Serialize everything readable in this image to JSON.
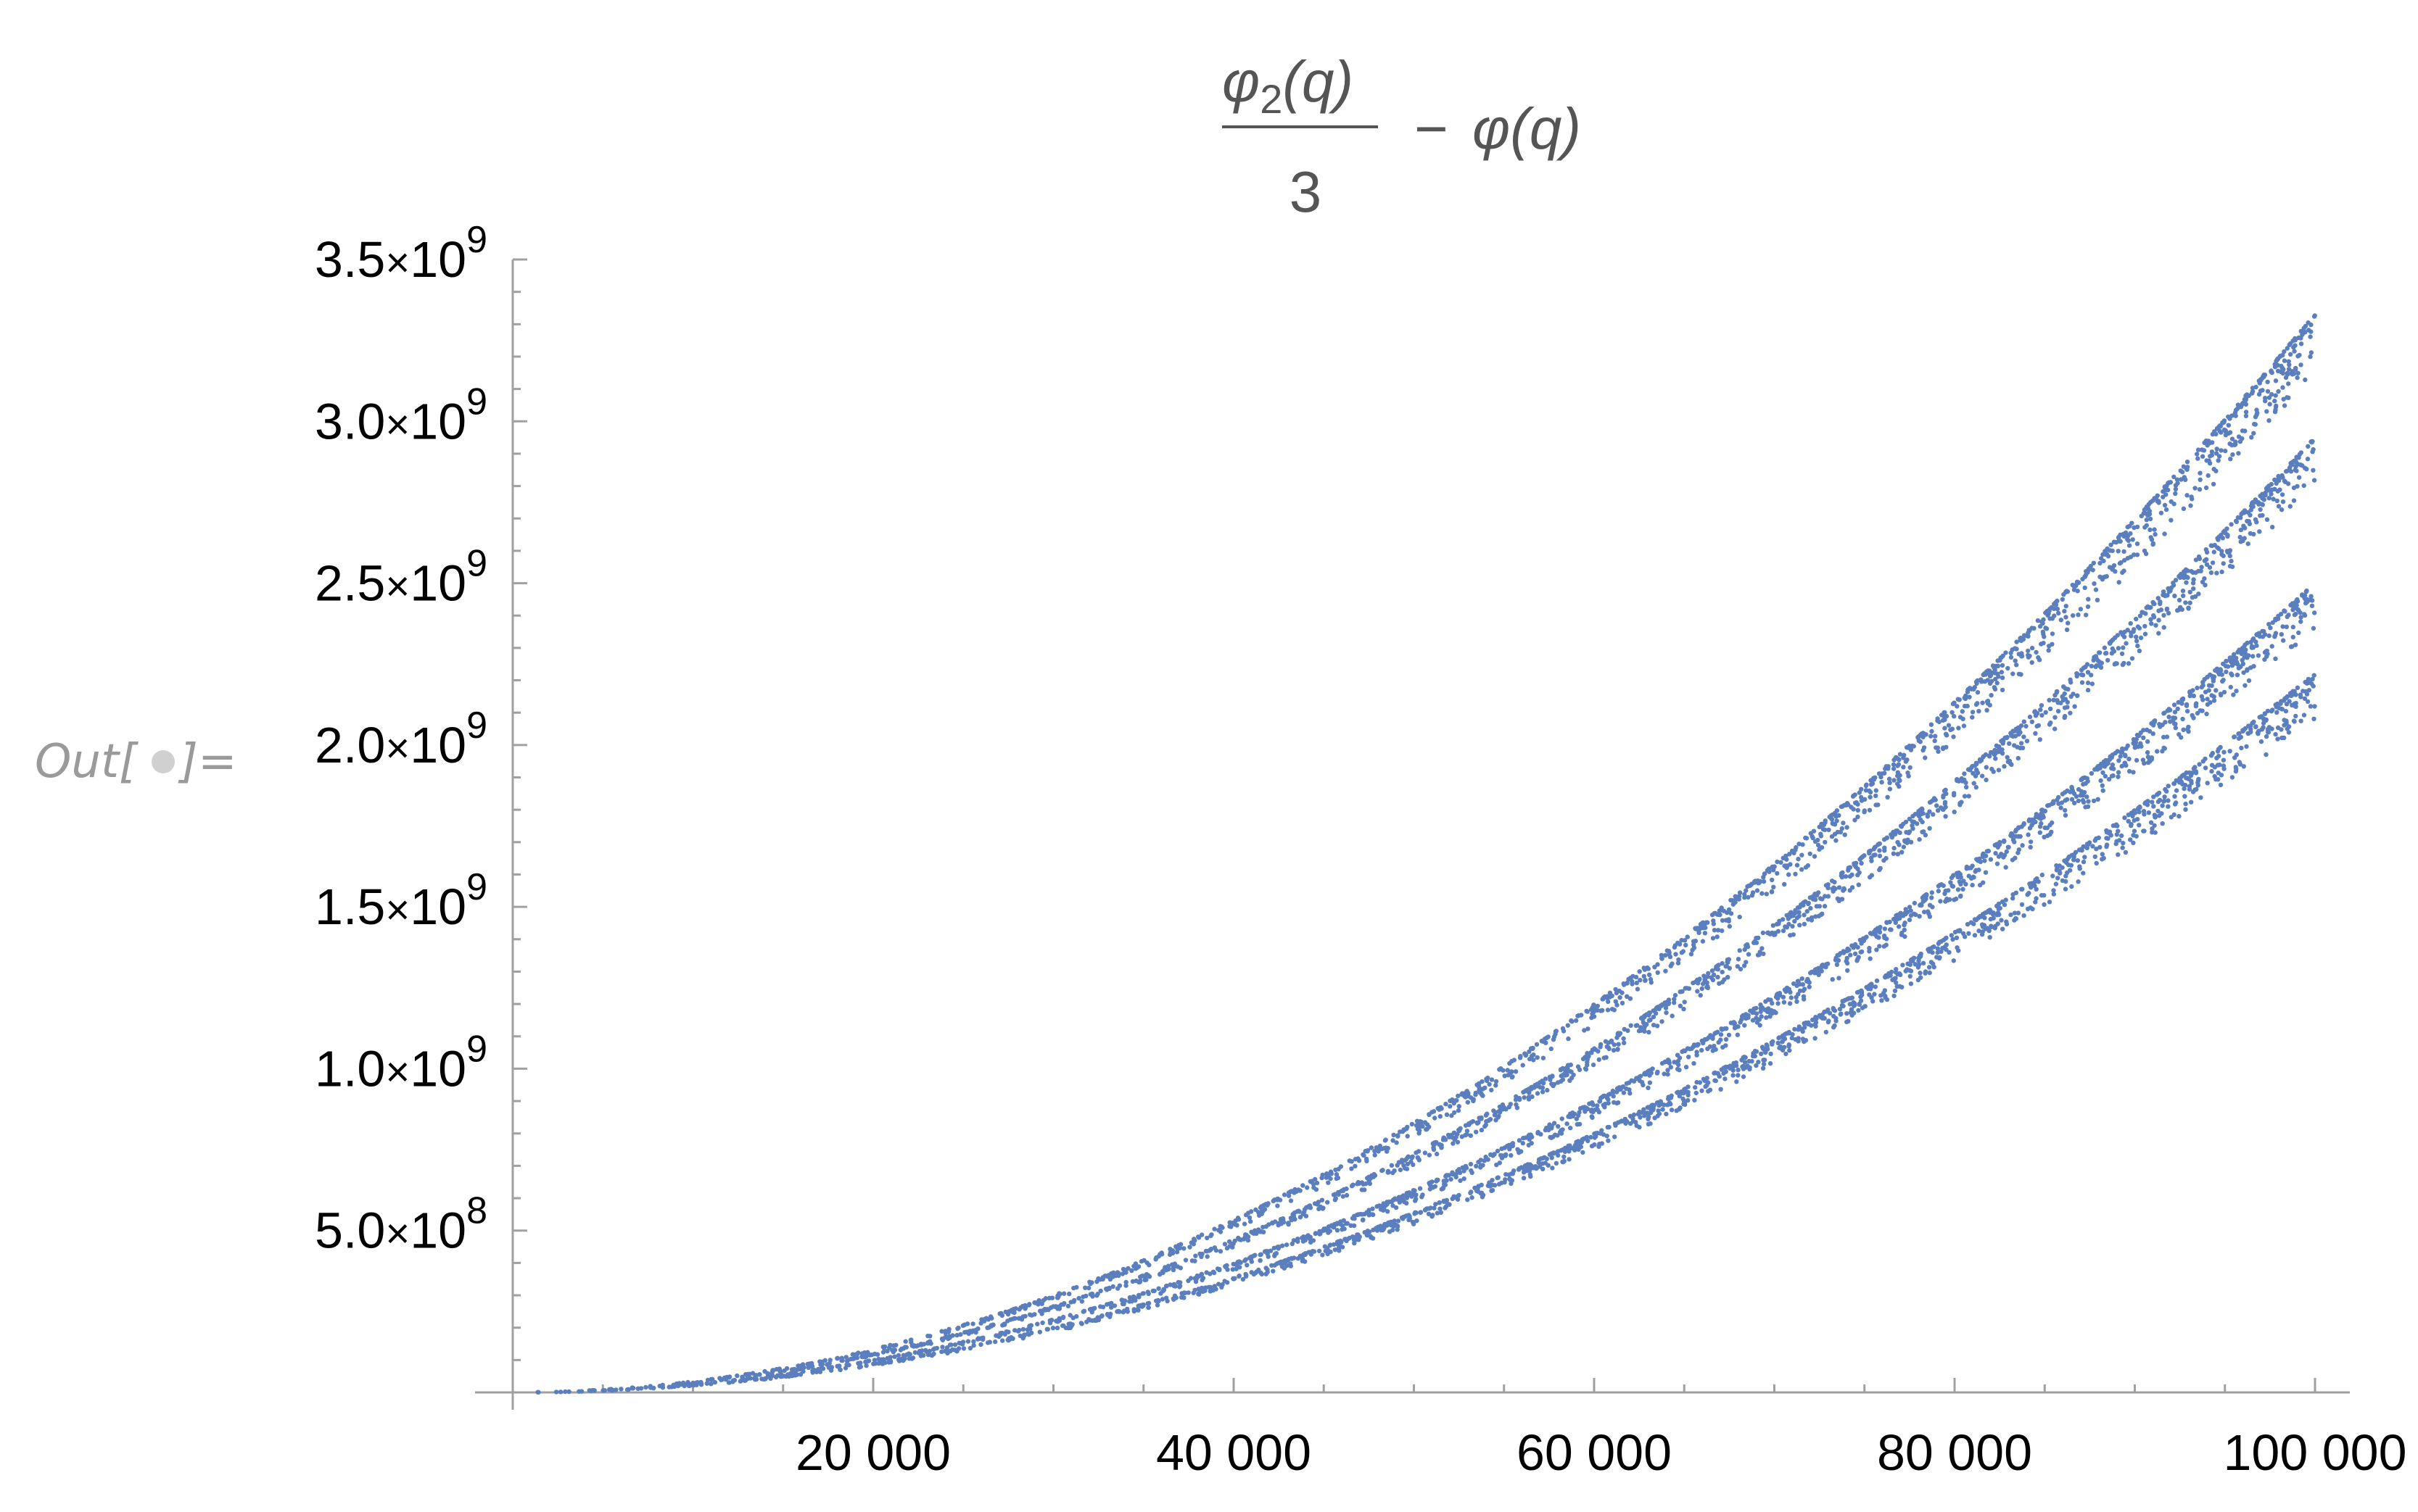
{
  "notebook": {
    "out_prefix": "Out[",
    "out_suffix": "]=",
    "out_bullet_color": "#d0d0d0"
  },
  "chart_data": {
    "type": "scatter",
    "title": {
      "numerator_symbol": "φ",
      "numerator_subscript": "2",
      "numerator_arg": "(q)",
      "denominator": "3",
      "minus": "−",
      "rhs_symbol": "φ",
      "rhs_arg": "(q)"
    },
    "xlabel": "",
    "ylabel": "",
    "xlim": [
      0,
      100000
    ],
    "ylim": [
      0,
      3500000000
    ],
    "x_ticks": [
      {
        "value": 20000,
        "label": "20 000"
      },
      {
        "value": 40000,
        "label": "40 000"
      },
      {
        "value": 60000,
        "label": "60 000"
      },
      {
        "value": 80000,
        "label": "80 000"
      },
      {
        "value": 100000,
        "label": "100 000"
      }
    ],
    "y_ticks": [
      {
        "value": 500000000,
        "mantissa": "5.0",
        "times": "×",
        "base": "10",
        "exp": "8"
      },
      {
        "value": 1000000000,
        "mantissa": "1.0",
        "times": "×",
        "base": "10",
        "exp": "9"
      },
      {
        "value": 1500000000,
        "mantissa": "1.5",
        "times": "×",
        "base": "10",
        "exp": "9"
      },
      {
        "value": 2000000000,
        "mantissa": "2.0",
        "times": "×",
        "base": "10",
        "exp": "9"
      },
      {
        "value": 2500000000,
        "mantissa": "2.5",
        "times": "×",
        "base": "10",
        "exp": "9"
      },
      {
        "value": 3000000000,
        "mantissa": "3.0",
        "times": "×",
        "base": "10",
        "exp": "9"
      },
      {
        "value": 3500000000,
        "mantissa": "3.5",
        "times": "×",
        "base": "10",
        "exp": "9"
      }
    ],
    "grid": false,
    "point_color": "#5b7fbe",
    "axis_color": "#a0a0a0",
    "series": [
      {
        "band_top_at_max_x": 3330000000,
        "band_bottom_at_max_x": 3150000000
      },
      {
        "band_top_at_max_x": 2950000000,
        "band_bottom_at_max_x": 2800000000
      },
      {
        "band_top_at_max_x": 2500000000,
        "band_bottom_at_max_x": 2360000000
      },
      {
        "band_top_at_max_x": 2220000000,
        "band_bottom_at_max_x": 2080000000
      }
    ],
    "curve_shape": "y ≈ c·x^2 (four diverging bands)"
  }
}
